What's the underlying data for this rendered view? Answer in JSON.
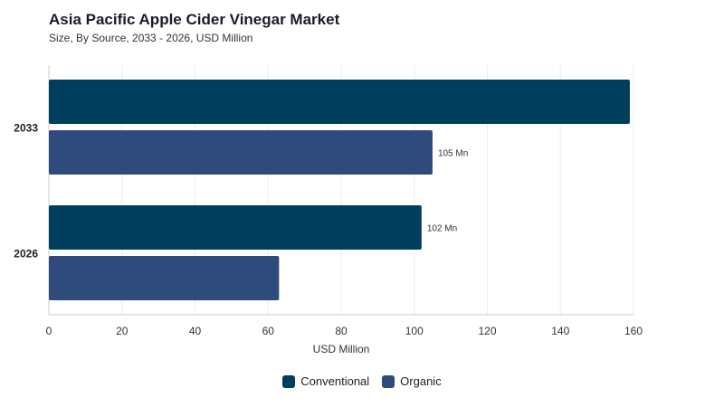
{
  "chart_data": {
    "type": "bar",
    "orientation": "horizontal",
    "title": "Asia Pacific Apple Cider Vinegar Market",
    "subtitle": "Size, By Source, 2033 - 2026, USD Million",
    "categories": [
      "2033",
      "2026"
    ],
    "series": [
      {
        "name": "Conventional",
        "color": "#003f5c",
        "values": [
          159,
          102
        ],
        "labels": [
          "",
          "102 Mn"
        ]
      },
      {
        "name": "Organic",
        "color": "#2f4b7c",
        "values": [
          105,
          63
        ],
        "labels": [
          "105 Mn",
          ""
        ]
      }
    ],
    "xlabel": "USD Million",
    "ylabel": "",
    "xlim": [
      0,
      160
    ],
    "xticks": [
      "0",
      "20",
      "40",
      "60",
      "80",
      "100",
      "120",
      "140",
      "160"
    ],
    "grid": true,
    "legend_position": "bottom"
  }
}
